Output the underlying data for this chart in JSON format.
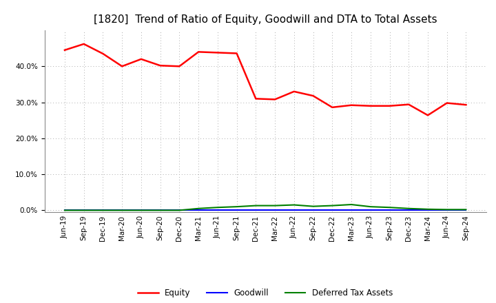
{
  "title": "[1820]  Trend of Ratio of Equity, Goodwill and DTA to Total Assets",
  "x_labels": [
    "Jun-19",
    "Sep-19",
    "Dec-19",
    "Mar-20",
    "Jun-20",
    "Sep-20",
    "Dec-20",
    "Mar-21",
    "Jun-21",
    "Sep-21",
    "Dec-21",
    "Mar-22",
    "Jun-22",
    "Sep-22",
    "Dec-22",
    "Mar-23",
    "Jun-23",
    "Sep-23",
    "Dec-23",
    "Mar-24",
    "Jun-24",
    "Sep-24"
  ],
  "equity": [
    0.445,
    0.462,
    0.435,
    0.4,
    0.42,
    0.402,
    0.4,
    0.44,
    0.438,
    0.436,
    0.31,
    0.308,
    0.33,
    0.318,
    0.286,
    0.292,
    0.29,
    0.29,
    0.294,
    0.264,
    0.298,
    0.293
  ],
  "goodwill": [
    0.0,
    0.0,
    0.0,
    0.0,
    0.0,
    0.0,
    0.0,
    0.0,
    0.0,
    0.0,
    0.0,
    0.0,
    0.0,
    0.0,
    0.0,
    0.0,
    0.0,
    0.0,
    0.0,
    0.0,
    0.0,
    0.0
  ],
  "dta": [
    0.0,
    0.0,
    0.0,
    0.0,
    0.0,
    0.0,
    0.0,
    0.005,
    0.008,
    0.01,
    0.013,
    0.013,
    0.015,
    0.011,
    0.013,
    0.016,
    0.01,
    0.008,
    0.005,
    0.003,
    0.002,
    0.002
  ],
  "equity_color": "#ff0000",
  "goodwill_color": "#0000ff",
  "dta_color": "#008000",
  "background_color": "#ffffff",
  "plot_bg_color": "#ffffff",
  "grid_color": "#aaaaaa",
  "ylim_min": -0.005,
  "ylim_max": 0.5,
  "yticks": [
    0.0,
    0.1,
    0.2,
    0.3,
    0.4
  ],
  "title_fontsize": 11,
  "tick_fontsize": 7.5,
  "legend_labels": [
    "Equity",
    "Goodwill",
    "Deferred Tax Assets"
  ]
}
